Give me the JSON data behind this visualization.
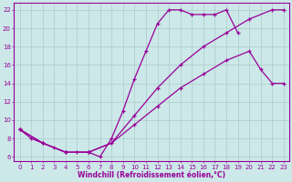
{
  "xlabel": "Windchill (Refroidissement éolien,°C)",
  "background_color": "#cce8e8",
  "line_color": "#990099",
  "grid_color": "#aacccc",
  "xlim": [
    -0.5,
    23.5
  ],
  "ylim": [
    5.5,
    22.8
  ],
  "xticks": [
    0,
    1,
    2,
    3,
    4,
    5,
    6,
    7,
    8,
    9,
    10,
    11,
    12,
    13,
    14,
    15,
    16,
    17,
    18,
    19,
    20,
    21,
    22,
    23
  ],
  "yticks": [
    6,
    8,
    10,
    12,
    14,
    16,
    18,
    20,
    22
  ],
  "series": [
    {
      "x": [
        0,
        1,
        2,
        3,
        4,
        5,
        6,
        7,
        8,
        9,
        10,
        11,
        12,
        13,
        14,
        15,
        16,
        17,
        18,
        19
      ],
      "y": [
        9.0,
        8.0,
        7.5,
        7.0,
        6.5,
        6.5,
        6.5,
        6.0,
        8.0,
        11.0,
        14.5,
        17.5,
        20.5,
        22.0,
        22.0,
        21.5,
        21.5,
        21.5,
        22.0,
        19.5
      ]
    },
    {
      "x": [
        0,
        2,
        4,
        6,
        8,
        10,
        12,
        14,
        16,
        18,
        20,
        22,
        23
      ],
      "y": [
        9.0,
        7.5,
        6.5,
        6.5,
        7.5,
        10.5,
        13.5,
        16.0,
        18.0,
        19.5,
        21.0,
        22.0,
        22.0
      ]
    },
    {
      "x": [
        0,
        2,
        4,
        6,
        8,
        10,
        12,
        14,
        16,
        18,
        20,
        21,
        22,
        23
      ],
      "y": [
        9.0,
        7.5,
        6.5,
        6.5,
        7.5,
        9.5,
        11.5,
        13.5,
        15.0,
        16.5,
        17.5,
        15.5,
        14.0,
        14.0
      ]
    }
  ]
}
